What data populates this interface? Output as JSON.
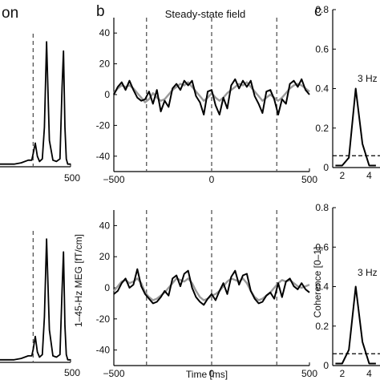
{
  "panels": {
    "a_title_fragment": "on",
    "b_letter": "b",
    "b_title": "Steady-state field",
    "c_letter": "c"
  },
  "axes": {
    "shared_xlabel": "Time [ms]",
    "b_ylabel": "1–45-Hz MEG [fT/cm]",
    "c_ylabel": "Coherence [0–1]",
    "a_x_end_tick": "500",
    "c_x_ticks": [
      "2",
      "4"
    ]
  },
  "annotations": {
    "c_top_peak": "3 Hz",
    "c_bottom_peak": "3 Hz"
  },
  "colors": {
    "trace_primary": "#000000",
    "trace_secondary": "#9a9a9a",
    "reference_line": "#555555"
  },
  "chart_data": [
    {
      "id": "b_top",
      "type": "line",
      "x_range": [
        -500,
        500
      ],
      "ylim": [
        -50,
        50
      ],
      "y_ticks": [
        -40,
        -20,
        0,
        20,
        40
      ],
      "x_ticks": [
        -500,
        0,
        500
      ],
      "vlines": [
        -333,
        0,
        333
      ],
      "series": [
        {
          "color": "#9a9a9a",
          "x": [
            -500,
            -480,
            -460,
            -440,
            -420,
            -400,
            -380,
            -360,
            -340,
            -320,
            -300,
            -280,
            -260,
            -240,
            -220,
            -200,
            -180,
            -160,
            -140,
            -120,
            -100,
            -80,
            -60,
            -40,
            -20,
            0,
            20,
            40,
            60,
            80,
            100,
            120,
            140,
            160,
            180,
            200,
            220,
            240,
            260,
            280,
            300,
            320,
            340,
            360,
            380,
            400,
            420,
            440,
            460,
            480,
            500
          ],
          "y": [
            1,
            4,
            6,
            5,
            6,
            4,
            1,
            -2,
            -5,
            -3,
            1,
            -2,
            -4,
            -3,
            0,
            3,
            5,
            7,
            6,
            8,
            5,
            2,
            -1,
            -4,
            -2,
            1,
            -2,
            -4,
            -2,
            1,
            3,
            5,
            7,
            6,
            8,
            5,
            2,
            -1,
            -4,
            -2,
            0,
            -2,
            -4,
            -2,
            1,
            4,
            6,
            7,
            6,
            4,
            2
          ]
        },
        {
          "color": "#000000",
          "x": [
            -500,
            -480,
            -460,
            -440,
            -420,
            -400,
            -380,
            -360,
            -340,
            -320,
            -300,
            -280,
            -260,
            -240,
            -220,
            -200,
            -180,
            -160,
            -140,
            -120,
            -100,
            -80,
            -60,
            -40,
            -20,
            0,
            20,
            40,
            60,
            80,
            100,
            120,
            140,
            160,
            180,
            200,
            220,
            240,
            260,
            280,
            300,
            320,
            340,
            360,
            380,
            400,
            420,
            440,
            460,
            480,
            500
          ],
          "y": [
            0,
            5,
            8,
            3,
            9,
            3,
            -2,
            -4,
            -3,
            2,
            -6,
            3,
            -11,
            -4,
            -8,
            4,
            7,
            3,
            9,
            6,
            9,
            -1,
            -5,
            -13,
            2,
            3,
            -7,
            -13,
            -2,
            -9,
            6,
            10,
            4,
            9,
            5,
            9,
            -1,
            -6,
            -12,
            2,
            3,
            -3,
            -13,
            -3,
            -6,
            7,
            9,
            5,
            10,
            3,
            0
          ]
        }
      ]
    },
    {
      "id": "b_bottom",
      "type": "line",
      "x_range": [
        -500,
        500
      ],
      "ylim": [
        -50,
        50
      ],
      "y_ticks": [
        -40,
        -20,
        0,
        20,
        40
      ],
      "x_ticks": [
        -500,
        0,
        500
      ],
      "vlines": [
        -333,
        0,
        333
      ],
      "series": [
        {
          "color": "#9a9a9a",
          "x": [
            -500,
            -480,
            -460,
            -440,
            -420,
            -400,
            -380,
            -360,
            -340,
            -320,
            -300,
            -280,
            -260,
            -240,
            -220,
            -200,
            -180,
            -160,
            -140,
            -120,
            -100,
            -80,
            -60,
            -40,
            -20,
            0,
            20,
            40,
            60,
            80,
            100,
            120,
            140,
            160,
            180,
            200,
            220,
            240,
            260,
            280,
            300,
            320,
            340,
            360,
            380,
            400,
            420,
            440,
            460,
            480,
            500
          ],
          "y": [
            -2,
            1,
            4,
            5,
            3,
            4,
            6,
            3,
            -3,
            -6,
            -8,
            -7,
            -5,
            -3,
            0,
            3,
            6,
            5,
            4,
            6,
            3,
            -2,
            -6,
            -8,
            -7,
            -5,
            -4,
            -2,
            1,
            4,
            6,
            5,
            4,
            6,
            3,
            -2,
            -6,
            -8,
            -7,
            -5,
            -3,
            0,
            3,
            5,
            4,
            5,
            3,
            1,
            0,
            1,
            2
          ]
        },
        {
          "color": "#000000",
          "x": [
            -500,
            -480,
            -460,
            -440,
            -420,
            -400,
            -380,
            -360,
            -340,
            -320,
            -300,
            -280,
            -260,
            -240,
            -220,
            -200,
            -180,
            -160,
            -140,
            -120,
            -100,
            -80,
            -60,
            -40,
            -20,
            0,
            20,
            40,
            60,
            80,
            100,
            120,
            140,
            160,
            180,
            200,
            220,
            240,
            260,
            280,
            300,
            320,
            340,
            360,
            380,
            400,
            420,
            440,
            460,
            480,
            500
          ],
          "y": [
            -4,
            -2,
            3,
            6,
            0,
            2,
            12,
            1,
            -4,
            -7,
            -10,
            -9,
            -6,
            -2,
            -5,
            6,
            8,
            1,
            9,
            11,
            0,
            -6,
            -9,
            -11,
            -7,
            -4,
            -8,
            -2,
            3,
            -4,
            7,
            11,
            2,
            8,
            9,
            -2,
            -7,
            -10,
            -9,
            -5,
            -3,
            -7,
            3,
            -6,
            4,
            6,
            1,
            -1,
            3,
            -1,
            -3
          ]
        }
      ]
    },
    {
      "id": "a_top",
      "type": "line",
      "x_end_tick": 500,
      "dashed_vline": "center",
      "series": [
        {
          "color": "#000000",
          "x": [
            0,
            10,
            20,
            30,
            40,
            45,
            47,
            50,
            53,
            56,
            60,
            63,
            66,
            70,
            75,
            80,
            85,
            88,
            90,
            92,
            94,
            96,
            98,
            100
          ],
          "y": [
            0.02,
            0.02,
            0.02,
            0.03,
            0.05,
            0.05,
            0.1,
            0.18,
            0.08,
            0.04,
            0.06,
            0.3,
            0.95,
            0.2,
            0.05,
            0.04,
            0.06,
            0.6,
            0.88,
            0.3,
            0.06,
            0.02,
            0.02,
            0.02
          ]
        }
      ]
    },
    {
      "id": "a_bottom",
      "type": "line",
      "x_end_tick": 500,
      "dashed_vline": "center",
      "series": [
        {
          "color": "#000000",
          "x": [
            0,
            10,
            20,
            30,
            40,
            45,
            47,
            50,
            53,
            56,
            60,
            63,
            66,
            70,
            75,
            80,
            85,
            88,
            90,
            92,
            94,
            96,
            98,
            100
          ],
          "y": [
            0.02,
            0.02,
            0.02,
            0.03,
            0.05,
            0.05,
            0.1,
            0.2,
            0.08,
            0.04,
            0.06,
            0.35,
            0.95,
            0.25,
            0.05,
            0.04,
            0.06,
            0.55,
            0.85,
            0.28,
            0.06,
            0.02,
            0.02,
            0.02
          ]
        }
      ]
    },
    {
      "id": "c_top",
      "type": "line",
      "ylim": [
        0,
        0.8
      ],
      "y_ticks": [
        0,
        0.2,
        0.4,
        0.6,
        0.8
      ],
      "x_ticks": [
        2,
        4
      ],
      "hline": 0.06,
      "series": [
        {
          "color": "#000000",
          "x": [
            1.5,
            2,
            2.5,
            3,
            3.5,
            4,
            4.5
          ],
          "y": [
            0.01,
            0.01,
            0.05,
            0.4,
            0.12,
            0.01,
            0.01
          ]
        }
      ]
    },
    {
      "id": "c_bottom",
      "type": "line",
      "ylim": [
        0,
        0.8
      ],
      "y_ticks": [
        0,
        0.2,
        0.4,
        0.6,
        0.8
      ],
      "x_ticks": [
        2,
        4
      ],
      "hline": 0.06,
      "series": [
        {
          "color": "#000000",
          "x": [
            1.5,
            2,
            2.5,
            3,
            3.5,
            4,
            4.5
          ],
          "y": [
            0.01,
            0.01,
            0.08,
            0.4,
            0.12,
            0.01,
            0.01
          ]
        }
      ]
    }
  ]
}
